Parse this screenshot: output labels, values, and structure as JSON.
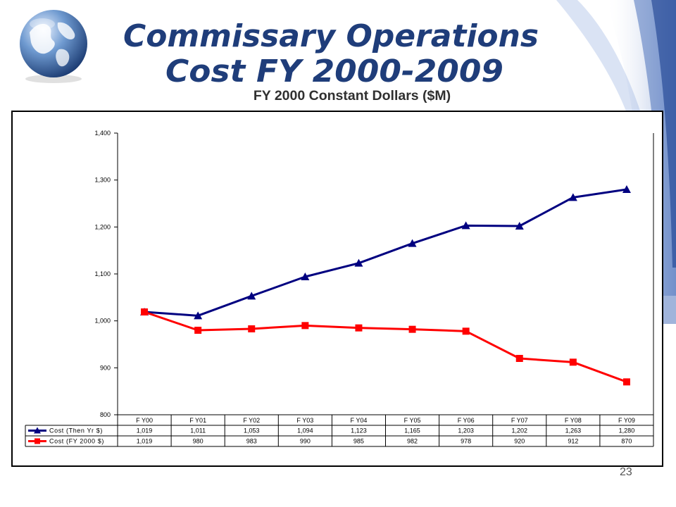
{
  "slide": {
    "title_line1": "Commissary Operations",
    "title_line2": "Cost FY 2000-2009",
    "subtitle": "FY 2000 Constant Dollars ($M)",
    "page_number": "23"
  },
  "colors": {
    "series_then_year": "#000080",
    "series_constant": "#ff0000",
    "title_fill": "#1f3d7a"
  },
  "chart_data": {
    "type": "line",
    "categories": [
      "F Y00",
      "F Y01",
      "F Y02",
      "F Y03",
      "F Y04",
      "F Y05",
      "F Y06",
      "F Y07",
      "F Y08",
      "F Y09"
    ],
    "ylim": [
      800,
      1400
    ],
    "yticks": [
      800,
      900,
      1000,
      1100,
      1200,
      1300,
      1400
    ],
    "ytick_labels": [
      "800",
      "900",
      "1,000",
      "1,100",
      "1,200",
      "1,300",
      "1,400"
    ],
    "grid": false,
    "legend": "data-table",
    "series": [
      {
        "name": "Cost (Then Yr $)",
        "marker": "triangle",
        "values": [
          1019,
          1011,
          1053,
          1094,
          1123,
          1165,
          1203,
          1202,
          1263,
          1280
        ],
        "labels": [
          "1,019",
          "1,011",
          "1,053",
          "1,094",
          "1,123",
          "1,165",
          "1,203",
          "1,202",
          "1,263",
          "1,280"
        ]
      },
      {
        "name": "Cost (FY 2000 $)",
        "marker": "square",
        "values": [
          1019,
          980,
          983,
          990,
          985,
          982,
          978,
          920,
          912,
          870
        ],
        "labels": [
          "1,019",
          "980",
          "983",
          "990",
          "985",
          "982",
          "978",
          "920",
          "912",
          "870"
        ]
      }
    ]
  }
}
